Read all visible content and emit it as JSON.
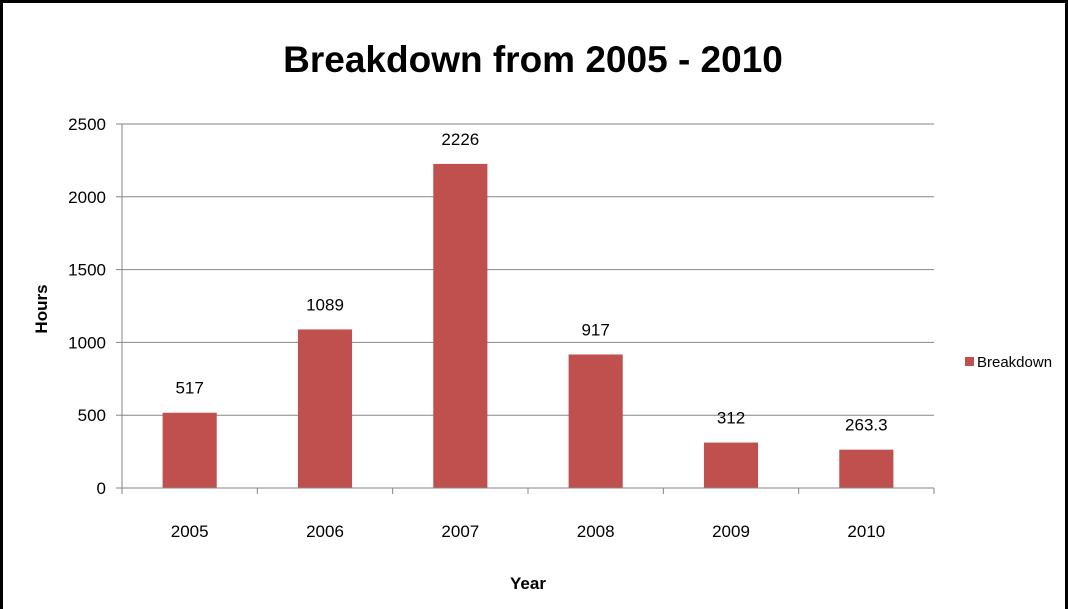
{
  "chart_data": {
    "type": "bar",
    "title": "Breakdown from 2005 - 2010",
    "xlabel": "Year",
    "ylabel": "Hours",
    "categories": [
      "2005",
      "2006",
      "2007",
      "2008",
      "2009",
      "2010"
    ],
    "series": [
      {
        "name": "Breakdown",
        "color": "#c0504d",
        "values": [
          517,
          1089,
          2226,
          917,
          312,
          263.3
        ],
        "labels": [
          "517",
          "1089",
          "2226",
          "917",
          "312",
          "263.3"
        ]
      }
    ],
    "ylim": [
      0,
      2500
    ],
    "yticks": [
      0,
      500,
      1000,
      1500,
      2000,
      2500
    ],
    "grid": true,
    "legend_position": "right"
  }
}
